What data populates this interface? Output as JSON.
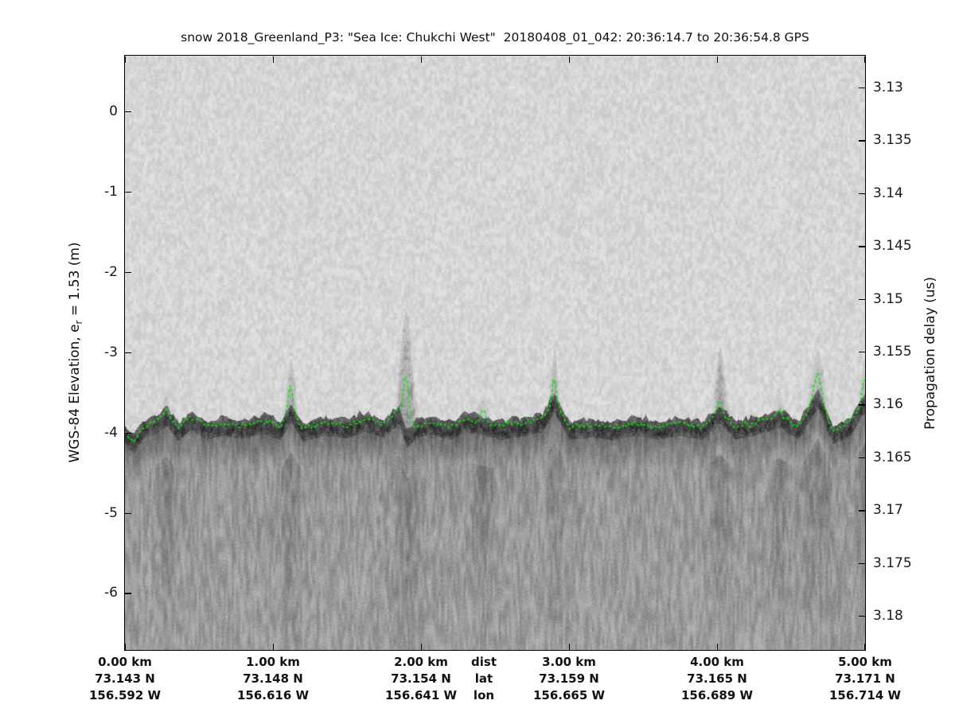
{
  "figure": {
    "title": "snow 2018_Greenland_P3: \"Sea Ice: Chukchi West\"  20180408_01_042: 20:36:14.7 to 20:36:54.8 GPS"
  },
  "left_axis": {
    "label_prefix": "WGS-84 Elevation, e",
    "label_sub": "r",
    "label_suffix": " = 1.53 (m)",
    "ticks": [
      "0",
      "-1",
      "-2",
      "-3",
      "-4",
      "-5",
      "-6"
    ]
  },
  "right_axis": {
    "label": "Propagation delay (us)",
    "ticks": [
      "3.13",
      "3.135",
      "3.14",
      "3.145",
      "3.15",
      "3.155",
      "3.16",
      "3.165",
      "3.17",
      "3.175",
      "3.18"
    ]
  },
  "bottom_axis": {
    "columns": [
      {
        "dist": "0.00 km",
        "lat": "73.143 N",
        "lon": "156.592 W"
      },
      {
        "dist": "1.00 km",
        "lat": "73.148 N",
        "lon": "156.616 W"
      },
      {
        "dist": "2.00 km",
        "lat": "73.154 N",
        "lon": "156.641 W"
      },
      {
        "dist": "dist",
        "lat": "lat",
        "lon": "lon"
      },
      {
        "dist": "3.00 km",
        "lat": "73.159 N",
        "lon": "156.665 W"
      },
      {
        "dist": "4.00 km",
        "lat": "73.165 N",
        "lon": "156.689 W"
      },
      {
        "dist": "5.00 km",
        "lat": "73.171 N",
        "lon": "156.714 W"
      }
    ]
  },
  "chart_data": {
    "type": "heatmap",
    "subtype": "radar-echogram",
    "title": "snow 2018_Greenland_P3: \"Sea Ice: Chukchi West\"  20180408_01_042: 20:36:14.7 to 20:36:54.8 GPS",
    "grid": false,
    "legend": "none",
    "x_axis": {
      "xlim_km": [
        0,
        5
      ],
      "tick_km": [
        0,
        1,
        2,
        3,
        4,
        5
      ],
      "tick_dist": [
        "0.00 km",
        "1.00 km",
        "2.00 km",
        "3.00 km",
        "4.00 km",
        "5.00 km"
      ],
      "tick_lat": [
        "73.143 N",
        "73.148 N",
        "73.154 N",
        "73.159 N",
        "73.165 N",
        "73.171 N"
      ],
      "tick_lon": [
        "156.592 W",
        "156.616 W",
        "156.641 W",
        "156.665 W",
        "156.689 W",
        "156.714 W"
      ],
      "row_labels": [
        "dist",
        "lat",
        "lon"
      ]
    },
    "y_axis_left": {
      "label": "WGS-84 Elevation, e_r = 1.53 (m)",
      "ticks_m": [
        0,
        -1,
        -2,
        -3,
        -4,
        -5,
        -6
      ],
      "ylim_m": [
        0.69,
        -6.71
      ]
    },
    "y_axis_right": {
      "label": "Propagation delay (us)",
      "ticks_us": [
        3.13,
        3.135,
        3.14,
        3.145,
        3.15,
        3.155,
        3.16,
        3.165,
        3.17,
        3.175,
        3.18
      ],
      "ylim_us": [
        3.127,
        3.1833
      ]
    },
    "shading": {
      "air_noise": "#d7d7d7",
      "surface_band": "#3a3a3a",
      "below_surface": "#949494",
      "mean_surface_elevation_m": -3.95,
      "surface_band_delay_us": 3.16
    },
    "surface_line": {
      "name": "tracked air-snow surface",
      "color": "#00f000",
      "style": "dashed-jagged",
      "x_km": [
        0,
        0.06,
        0.12,
        0.2,
        0.28,
        0.36,
        0.44,
        0.55,
        0.65,
        0.8,
        0.95,
        1.05,
        1.12,
        1.2,
        1.35,
        1.5,
        1.62,
        1.75,
        1.85,
        1.9,
        1.96,
        2.05,
        2.2,
        2.3,
        2.42,
        2.55,
        2.7,
        2.82,
        2.9,
        3.0,
        3.15,
        3.3,
        3.45,
        3.6,
        3.75,
        3.9,
        4.02,
        4.12,
        4.25,
        4.42,
        4.55,
        4.68,
        4.78,
        4.9,
        5.0
      ],
      "elevation_m": [
        -4.0,
        -4.12,
        -3.95,
        -3.88,
        -3.78,
        -3.97,
        -3.82,
        -3.95,
        -3.9,
        -3.93,
        -3.88,
        -3.95,
        -3.72,
        -3.97,
        -3.9,
        -3.93,
        -3.85,
        -3.92,
        -3.75,
        -4.05,
        -3.95,
        -3.88,
        -3.95,
        -3.85,
        -3.9,
        -3.95,
        -3.9,
        -3.85,
        -3.6,
        -3.95,
        -3.92,
        -3.95,
        -3.9,
        -3.95,
        -3.9,
        -3.95,
        -3.75,
        -3.95,
        -3.9,
        -3.8,
        -3.95,
        -3.55,
        -4.0,
        -3.9,
        -3.6
      ]
    },
    "pressure_ridges": [
      {
        "x_km": 0.28,
        "plume_top_m": -3.55,
        "green_peak_m": -3.72,
        "width_km": 0.025
      },
      {
        "x_km": 1.12,
        "plume_top_m": -3.15,
        "green_peak_m": -3.45,
        "width_km": 0.03
      },
      {
        "x_km": 1.9,
        "plume_top_m": -2.6,
        "green_peak_m": -3.35,
        "width_km": 0.035
      },
      {
        "x_km": 2.42,
        "plume_top_m": -3.6,
        "green_peak_m": -3.75,
        "width_km": 0.03
      },
      {
        "x_km": 2.9,
        "plume_top_m": -3.05,
        "green_peak_m": -3.3,
        "width_km": 0.022
      },
      {
        "x_km": 4.02,
        "plume_top_m": -3.0,
        "green_peak_m": -3.6,
        "width_km": 0.028
      },
      {
        "x_km": 4.42,
        "plume_top_m": -3.55,
        "green_peak_m": -3.7,
        "width_km": 0.025
      },
      {
        "x_km": 4.68,
        "plume_top_m": -3.05,
        "green_peak_m": -3.3,
        "width_km": 0.05
      },
      {
        "x_km": 4.99,
        "plume_top_m": -3.2,
        "green_peak_m": -3.4,
        "width_km": 0.02
      }
    ]
  }
}
